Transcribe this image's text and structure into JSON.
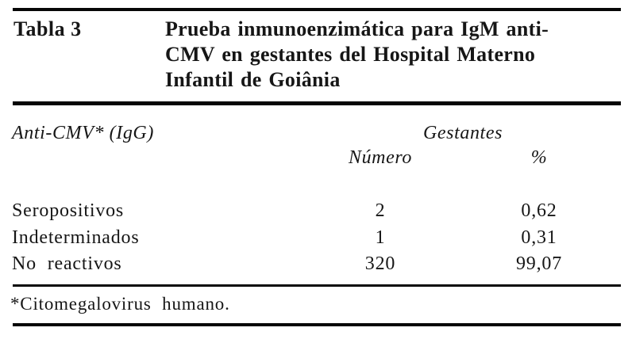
{
  "table": {
    "label": "Tabla 3",
    "title": "Prueba inmunoenzimática para IgM anti-CMV en gestantes del Hospital Materno Infantil de Goiânia",
    "title_lines": [
      "Prueba inmunoenzimática para IgM anti-",
      "CMV en gestantes del Hospital Materno",
      "Infantil de Goiânia"
    ],
    "header": {
      "row_label": "Anti-CMV* (IgG)",
      "group_label": "Gestantes",
      "numero": "Número",
      "percent": "%"
    },
    "rows": [
      {
        "label": "Seropositivos",
        "numero": "2",
        "percent": "0,62"
      },
      {
        "label": "Indeterminados",
        "numero": "1",
        "percent": "0,31"
      },
      {
        "label": "No reactivos",
        "numero": "320",
        "percent": "99,07"
      }
    ],
    "footnote": "*Citomegalovirus humano."
  },
  "colors": {
    "background": "#ffffff",
    "text": "#161616",
    "rule": "#060606"
  },
  "chart_data": {
    "type": "table",
    "title": "Prueba inmunoenzimática para IgM anti-CMV en gestantes del Hospital Materno Infantil de Goiânia",
    "column_group": "Gestantes",
    "columns": [
      "Anti-CMV* (IgG)",
      "Número",
      "%"
    ],
    "rows": [
      [
        "Seropositivos",
        2,
        0.62
      ],
      [
        "Indeterminados",
        1,
        0.31
      ],
      [
        "No reactivos",
        320,
        99.07
      ]
    ],
    "footnote": "*Citomegalovirus humano."
  }
}
